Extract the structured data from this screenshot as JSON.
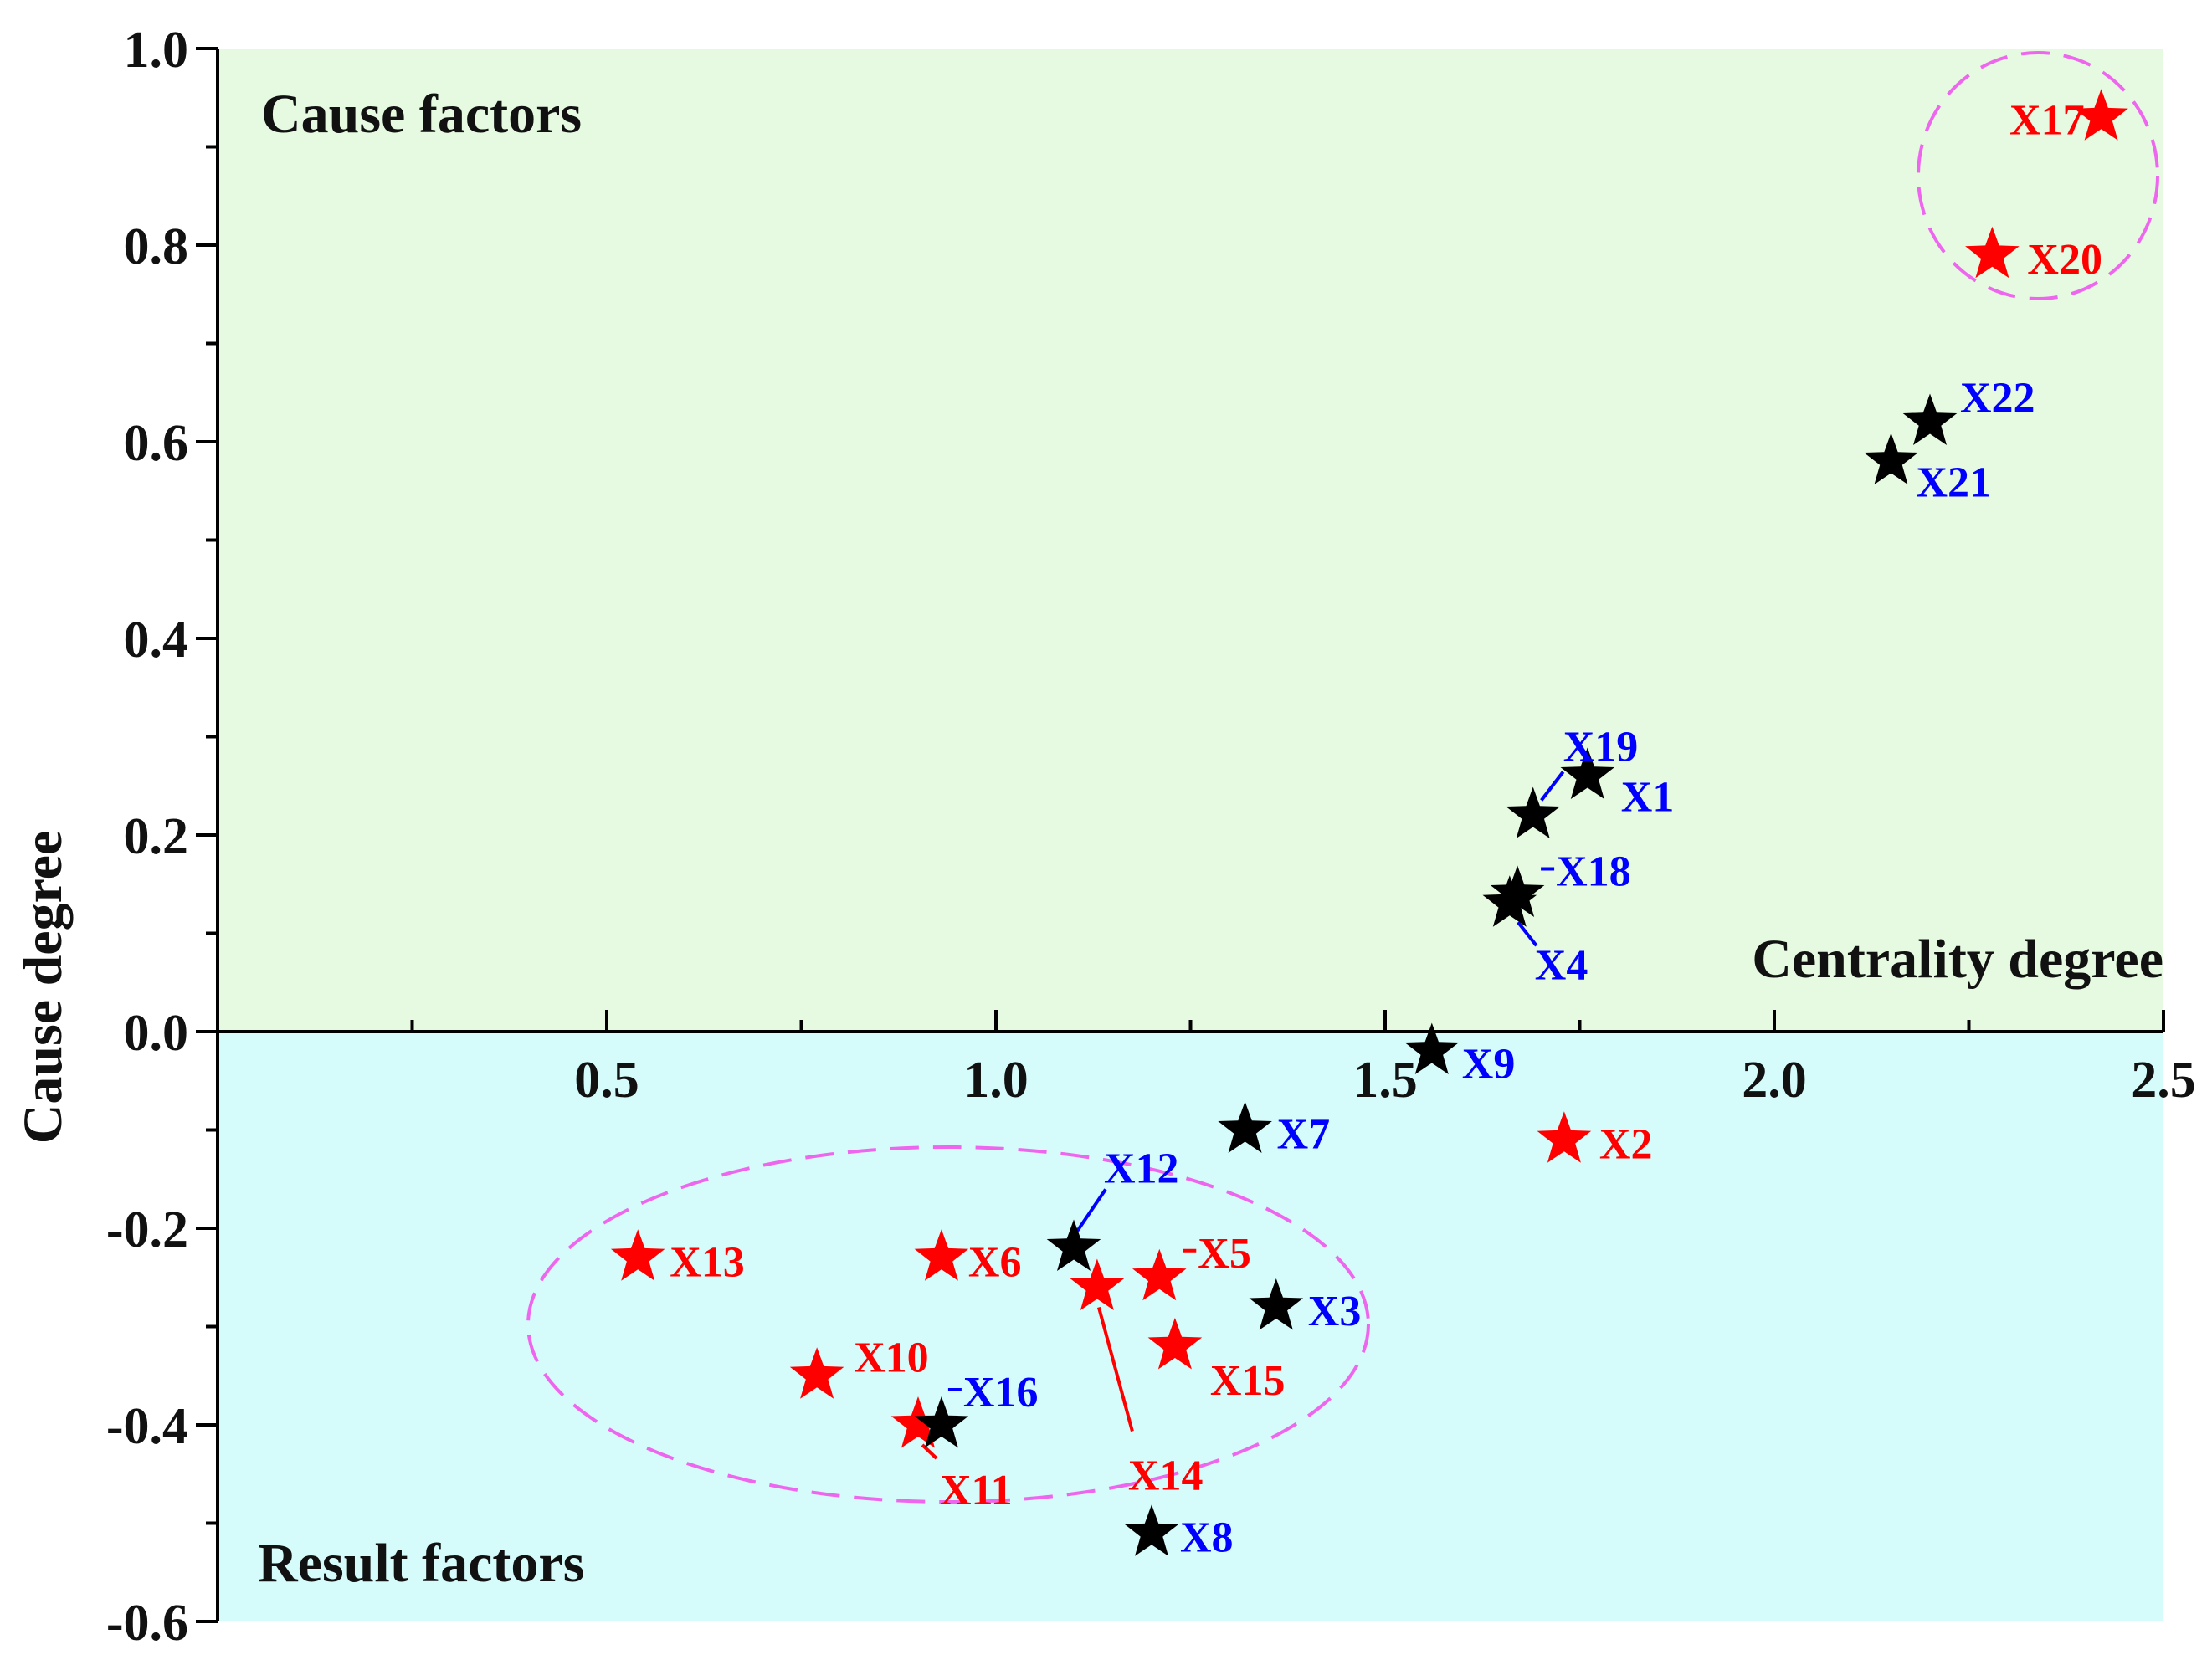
{
  "chart_data": {
    "type": "scatter",
    "xlabel": "Centrality degree",
    "ylabel": "Cause degree",
    "xlim": [
      0,
      2.5
    ],
    "ylim": [
      -0.6,
      1.0
    ],
    "x_ticks": [
      {
        "value": 0.5,
        "label": "0.5"
      },
      {
        "value": 1.0,
        "label": "1.0"
      },
      {
        "value": 1.5,
        "label": "1.5"
      },
      {
        "value": 2.0,
        "label": "2.0"
      },
      {
        "value": 2.5,
        "label": "2.5"
      }
    ],
    "y_ticks": [
      {
        "value": 1.0,
        "label": "1.0"
      },
      {
        "value": 0.8,
        "label": "0.8"
      },
      {
        "value": 0.6,
        "label": "0.6"
      },
      {
        "value": 0.4,
        "label": "0.4"
      },
      {
        "value": 0.2,
        "label": "0.2"
      },
      {
        "value": 0.0,
        "label": "0.0"
      },
      {
        "value": -0.2,
        "label": "-0.2"
      },
      {
        "value": -0.4,
        "label": "-0.4"
      },
      {
        "value": -0.6,
        "label": "-0.6"
      }
    ],
    "regions": {
      "cause": {
        "label": "Cause factors",
        "color": "#e6fae1"
      },
      "result": {
        "label": "Result factors",
        "color": "#d6fbfb"
      }
    },
    "colors": {
      "key": "#ff0000",
      "other": "#000000",
      "other_label": "#0000ff",
      "ellipse": "#ee66ee"
    },
    "points": [
      {
        "name": "X1",
        "x": 1.76,
        "y": 0.26,
        "group": "other"
      },
      {
        "name": "X2",
        "x": 1.73,
        "y": -0.11,
        "group": "key"
      },
      {
        "name": "X3",
        "x": 1.36,
        "y": -0.28,
        "group": "other"
      },
      {
        "name": "X4",
        "x": 1.66,
        "y": 0.13,
        "group": "other"
      },
      {
        "name": "X5",
        "x": 1.21,
        "y": -0.25,
        "group": "key"
      },
      {
        "name": "X6",
        "x": 0.93,
        "y": -0.23,
        "group": "key"
      },
      {
        "name": "X7",
        "x": 1.32,
        "y": -0.1,
        "group": "other"
      },
      {
        "name": "X8",
        "x": 1.2,
        "y": -0.51,
        "group": "other"
      },
      {
        "name": "X9",
        "x": 1.56,
        "y": -0.02,
        "group": "other"
      },
      {
        "name": "X10",
        "x": 0.77,
        "y": -0.35,
        "group": "key"
      },
      {
        "name": "X11",
        "x": 0.9,
        "y": -0.4,
        "group": "key"
      },
      {
        "name": "X12",
        "x": 1.1,
        "y": -0.22,
        "group": "other"
      },
      {
        "name": "X13",
        "x": 0.54,
        "y": -0.23,
        "group": "key"
      },
      {
        "name": "X14",
        "x": 1.13,
        "y": -0.26,
        "group": "key"
      },
      {
        "name": "X15",
        "x": 1.23,
        "y": -0.32,
        "group": "key"
      },
      {
        "name": "X16",
        "x": 0.93,
        "y": -0.4,
        "group": "other"
      },
      {
        "name": "X17",
        "x": 2.42,
        "y": 0.93,
        "group": "key"
      },
      {
        "name": "X18",
        "x": 1.67,
        "y": 0.14,
        "group": "other"
      },
      {
        "name": "X19",
        "x": 1.69,
        "y": 0.22,
        "group": "other"
      },
      {
        "name": "X20",
        "x": 2.28,
        "y": 0.79,
        "group": "key"
      },
      {
        "name": "X21",
        "x": 2.15,
        "y": 0.58,
        "group": "other"
      },
      {
        "name": "X22",
        "x": 2.2,
        "y": 0.62,
        "group": "other"
      }
    ]
  }
}
